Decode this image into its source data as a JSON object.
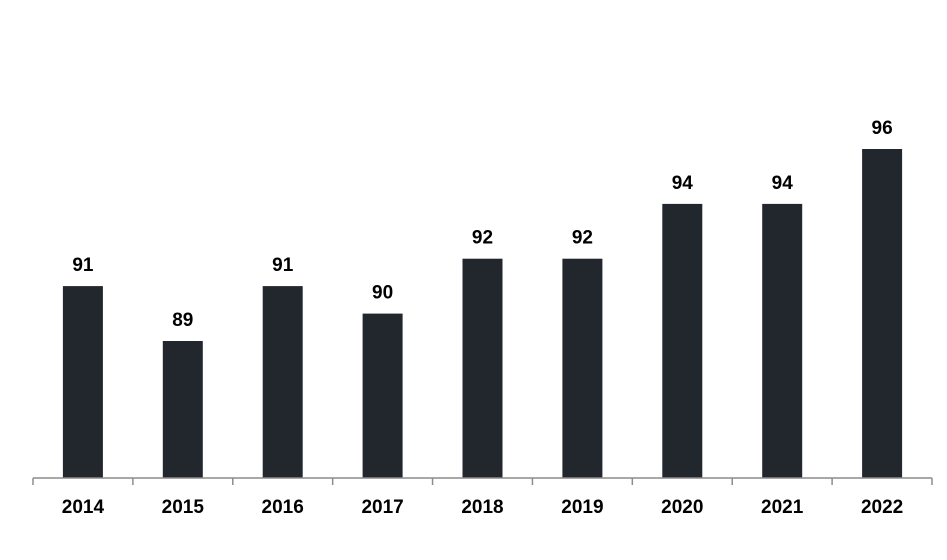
{
  "chart_data": {
    "type": "bar",
    "categories": [
      "2014",
      "2015",
      "2016",
      "2017",
      "2018",
      "2019",
      "2020",
      "2021",
      "2022"
    ],
    "values": [
      91,
      89,
      91,
      90,
      92,
      92,
      94,
      94,
      96
    ],
    "data_labels": [
      "91",
      "89",
      "91",
      "90",
      "92",
      "92",
      "94",
      "94",
      "96"
    ],
    "title": "",
    "xlabel": "",
    "ylabel": "",
    "ylim": [
      80,
      98
    ],
    "grid": false,
    "legend": "none",
    "bar_color": "#22272e",
    "axis_color": "#8c8c8c",
    "label_color": "#000000"
  }
}
